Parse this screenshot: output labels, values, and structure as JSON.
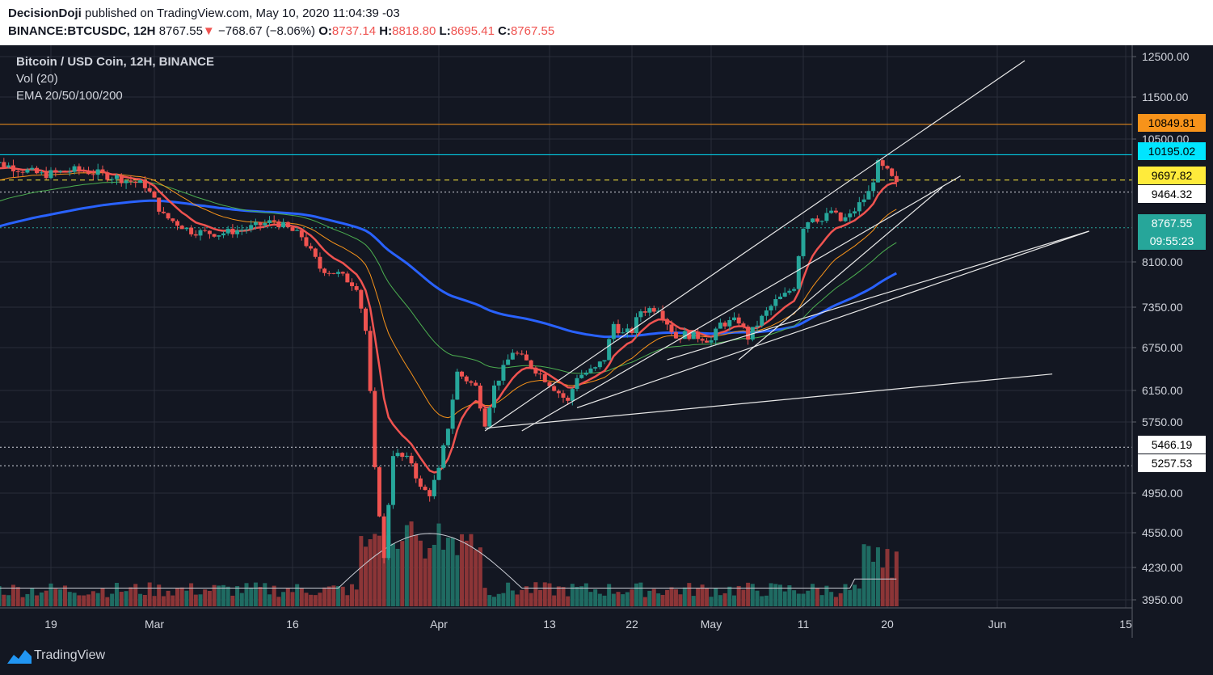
{
  "header": {
    "publisher": "DecisionDoji",
    "published_text": " published on TradingView.com, May 10, 2020 11:04:39 -03",
    "symbol": "BINANCE:BTCUSDC, 12H",
    "last": "8767.55",
    "change": "−768.67 (−8.06%)",
    "o_label": "O:",
    "o": "8737.14",
    "h_label": "H:",
    "h": "8818.80",
    "l_label": "L:",
    "l": "8695.41",
    "c_label": "C:",
    "c": "8767.55"
  },
  "legend": {
    "title": "Bitcoin / USD Coin, 12H, BINANCE",
    "volume": "Vol (20)",
    "ema": "EMA 20/50/100/200"
  },
  "footer": {
    "brand": "TradingView"
  },
  "chart_data": {
    "type": "candlestick",
    "timeframe": "12H",
    "x_ticks": [
      "19",
      "Mar",
      "16",
      "Apr",
      "13",
      "22",
      "May",
      "11",
      "20",
      "Jun",
      "15"
    ],
    "y_ticks": [
      "12500.00",
      "11500.00",
      "10500.00",
      "8100.00",
      "7350.00",
      "6750.00",
      "6150.00",
      "5750.00",
      "4950.00",
      "4550.00",
      "4230.00",
      "3950.00"
    ],
    "colors": {
      "up": "#26a69a",
      "down": "#ef5350",
      "background": "#131722",
      "grid": "#2a2e39"
    },
    "price_labels": [
      {
        "text": "10849.81",
        "bg": "#f7931a",
        "fg": "#000000"
      },
      {
        "text": "10195.02",
        "bg": "#00e5ff",
        "fg": "#000000"
      },
      {
        "text": "9697.82",
        "bg": "#ffeb3b",
        "fg": "#000000"
      },
      {
        "text": "9464.32",
        "bg": "#ffffff",
        "fg": "#000000"
      },
      {
        "text": "8767.55",
        "bg": "#26a69a",
        "fg": "#ffffff"
      },
      {
        "text": "09:55:23",
        "bg": "#26a69a",
        "fg": "#ffffff"
      },
      {
        "text": "5466.19",
        "bg": "#ffffff",
        "fg": "#000000"
      },
      {
        "text": "5257.53",
        "bg": "#ffffff",
        "fg": "#000000"
      }
    ],
    "horizontal_levels": [
      {
        "value": 10849.81,
        "color": "#f7931a",
        "style": "solid"
      },
      {
        "value": 10195.02,
        "color": "#00e5ff",
        "style": "solid"
      },
      {
        "value": 9697.82,
        "color": "#ffeb3b",
        "style": "dashed"
      },
      {
        "value": 9464.32,
        "color": "#d1d4dc",
        "style": "dotted"
      },
      {
        "value": 8767.55,
        "color": "#26a69a",
        "style": "dotted"
      },
      {
        "value": 5466.19,
        "color": "#d1d4dc",
        "style": "dotted"
      },
      {
        "value": 5257.53,
        "color": "#d1d4dc",
        "style": "dotted"
      }
    ],
    "trendlines_note": "white trendlines drawn on the chart",
    "ema_colors": {
      "ema20": "#ef5350",
      "ema50": "#f7931a",
      "ema100": "#4caf50",
      "ema200": "#2962ff"
    }
  }
}
